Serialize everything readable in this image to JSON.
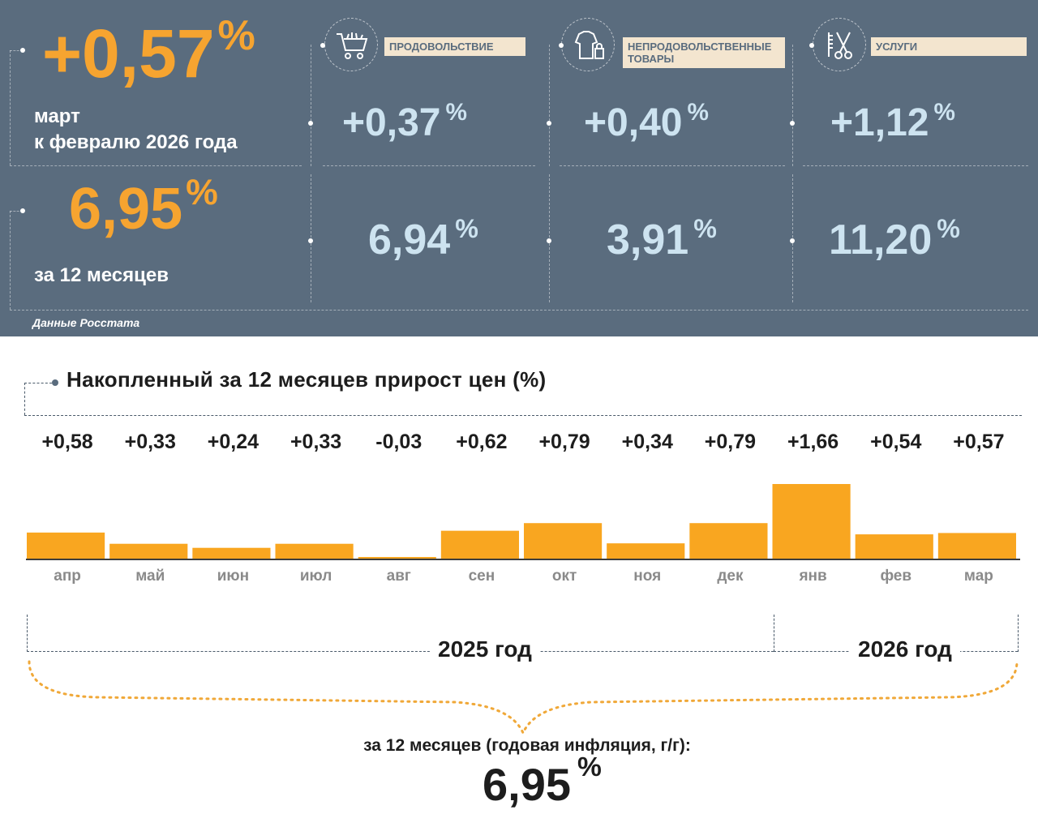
{
  "monthly": {
    "value": "+0,57",
    "unit": "%",
    "label_line1": "март",
    "label_line2": "к февралю 2026 года"
  },
  "annual": {
    "value": "6,95",
    "unit": "%",
    "label": "за 12 месяцев"
  },
  "categories": [
    {
      "label": "ПРОДОВОЛЬСТВИЕ",
      "monthly": "+0,37",
      "annual": "6,94",
      "unit": "%",
      "icon": "shopping-cart-icon"
    },
    {
      "label": "НЕПРОДОВОЛЬСТВЕННЫЕ ТОВАРЫ",
      "monthly": "+0,40",
      "annual": "3,91",
      "unit": "%",
      "icon": "clothes-bag-icon"
    },
    {
      "label": "УСЛУГИ",
      "monthly": "+1,12",
      "annual": "11,20",
      "unit": "%",
      "icon": "barber-tools-icon"
    }
  ],
  "source": "Данные Росстата",
  "colors": {
    "panel_bg": "#5a6c7e",
    "accent_orange": "#f6a430",
    "light_blue": "#cde3f0",
    "bar": "#f9a620",
    "label_bg": "#f3e5cf"
  },
  "chart_data": {
    "type": "bar",
    "title": "Накопленный за 12 месяцев прирост цен (%)",
    "categories": [
      "апр",
      "май",
      "июн",
      "июл",
      "авг",
      "сен",
      "окт",
      "ноя",
      "дек",
      "янв",
      "фев",
      "мар"
    ],
    "values": [
      0.58,
      0.33,
      0.24,
      0.33,
      -0.03,
      0.62,
      0.79,
      0.34,
      0.79,
      1.66,
      0.54,
      0.57
    ],
    "value_labels": [
      "+0,58",
      "+0,33",
      "+0,24",
      "+0,33",
      "-0,03",
      "+0,62",
      "+0,79",
      "+0,34",
      "+0,79",
      "+1,66",
      "+0,54",
      "+0,57"
    ],
    "ylim": [
      0,
      1.66
    ],
    "xlabel": "",
    "ylabel": "",
    "grid": false,
    "legend": "none",
    "years": [
      "2025 год",
      "2026 год"
    ]
  },
  "summary": {
    "caption": "за 12 месяцев (годовая инфляция, г/г):",
    "value": "6,95",
    "unit": "%"
  }
}
